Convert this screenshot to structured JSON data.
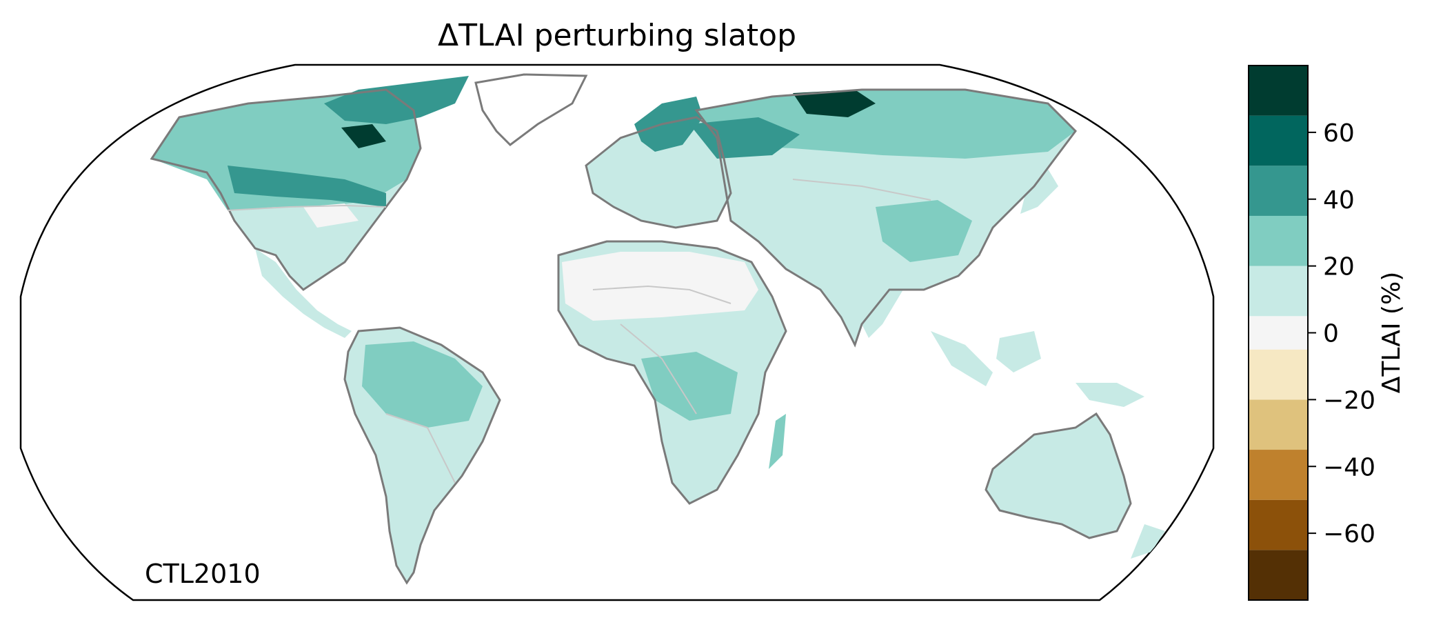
{
  "map": {
    "title": "ΔTLAI perturbing slatop",
    "annotation": "CTL2010",
    "projection": "robinson",
    "coastline_color": "#7a7a7a",
    "border_color": "#c8c8c8"
  },
  "colorbar": {
    "label": "ΔTLAI (%)",
    "range": [
      -80,
      80
    ],
    "bounds": [
      -80,
      -65,
      -50,
      -35,
      -20,
      -5,
      5,
      20,
      35,
      50,
      65,
      80
    ],
    "colors": [
      "#543005",
      "#8c510a",
      "#bf812d",
      "#dfc27d",
      "#f6e8c3",
      "#f5f5f5",
      "#c7eae5",
      "#80cdc1",
      "#35978f",
      "#01665e",
      "#003c30"
    ],
    "ticks": [
      {
        "value": 60,
        "label": "60"
      },
      {
        "value": 40,
        "label": "40"
      },
      {
        "value": 20,
        "label": "20"
      },
      {
        "value": 0,
        "label": "0"
      },
      {
        "value": -20,
        "label": "−20"
      },
      {
        "value": -40,
        "label": "−40"
      },
      {
        "value": -60,
        "label": "−60"
      }
    ]
  }
}
